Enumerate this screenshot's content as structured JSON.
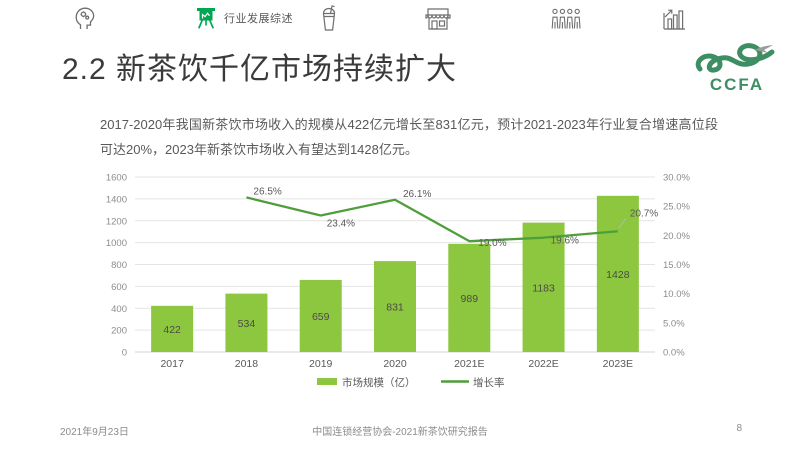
{
  "nav": {
    "items": [
      {
        "id": "mind",
        "label": ""
      },
      {
        "id": "industry-overview",
        "label": "行业发展综述",
        "active": true
      },
      {
        "id": "drink",
        "label": ""
      },
      {
        "id": "store",
        "label": ""
      },
      {
        "id": "people",
        "label": ""
      },
      {
        "id": "growth-chart",
        "label": ""
      }
    ],
    "active_color": "#00a651",
    "inactive_color": "#6e6e6e"
  },
  "title": "2.2 新茶饮千亿市场持续扩大",
  "logo": {
    "text": "CCFA",
    "color": "#3e8e63"
  },
  "summary": "2017-2020年我国新茶饮市场收入的规模从422亿元增长至831亿元，预计2021-2023年行业复合增速高位段可达20%，2023年新茶饮市场收入有望达到1428亿元。",
  "chart_data": {
    "type": "bar",
    "subtype": "combo-bar-line",
    "categories": [
      "2017",
      "2018",
      "2019",
      "2020",
      "2021E",
      "2022E",
      "2023E"
    ],
    "series": [
      {
        "name": "市场规模（亿）",
        "type": "bar",
        "color": "#8dc63f",
        "values": [
          422,
          534,
          659,
          831,
          989,
          1183,
          1428
        ]
      },
      {
        "name": "增长率",
        "type": "line",
        "color": "#4f9e3c",
        "values": [
          null,
          26.5,
          23.4,
          26.1,
          19.0,
          19.6,
          20.7
        ],
        "labels": [
          "",
          "26.5%",
          "23.4%",
          "26.1%",
          "19.0%",
          "19.6%",
          "20.7%"
        ]
      }
    ],
    "left_axis": {
      "min": 0,
      "max": 1600,
      "step": 200,
      "ticks": [
        "0",
        "200",
        "400",
        "600",
        "800",
        "1000",
        "1200",
        "1400",
        "1600"
      ]
    },
    "right_axis": {
      "min": 0,
      "max": 30,
      "step": 5,
      "ticks": [
        "0.0%",
        "5.0%",
        "10.0%",
        "15.0%",
        "20.0%",
        "25.0%",
        "30.0%"
      ]
    },
    "grid": true,
    "legend_position": "bottom",
    "grid_color": "#e4e4e4",
    "axis_text_color": "#8c8c8c",
    "label_text_color": "#595959"
  },
  "footer": {
    "date": "2021年9月23日",
    "center": "中国连锁经营协会-2021新茶饮研究报告",
    "page": "8"
  }
}
